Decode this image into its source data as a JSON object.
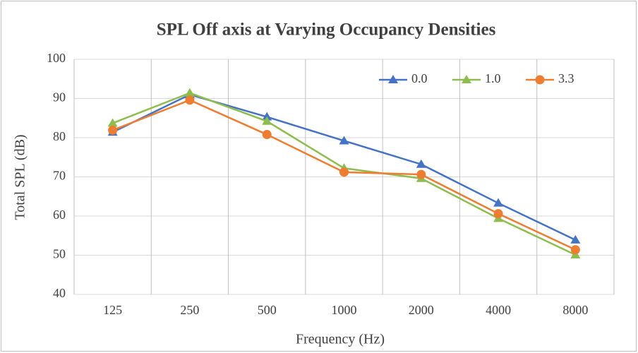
{
  "chart_data": {
    "type": "line",
    "title": "SPL Off axis at Varying Occupancy Densities",
    "xlabel": "Frequency (Hz)",
    "ylabel": "Total SPL (dB)",
    "categories": [
      "125",
      "250",
      "500",
      "1000",
      "2000",
      "4000",
      "8000"
    ],
    "series": [
      {
        "name": "0.0",
        "color": "#4472c4",
        "marker": "triangle",
        "values": [
          81.4,
          91.0,
          85.3,
          79.2,
          73.2,
          63.3,
          53.9
        ]
      },
      {
        "name": "1.0",
        "color": "#8fbc4f",
        "marker": "triangle",
        "values": [
          83.7,
          91.4,
          84.2,
          72.2,
          69.6,
          59.4,
          50.1
        ]
      },
      {
        "name": "3.3",
        "color": "#ed7d31",
        "marker": "circle",
        "values": [
          81.9,
          89.6,
          80.8,
          71.2,
          70.6,
          60.6,
          51.4
        ]
      }
    ],
    "ylim": [
      40,
      100
    ],
    "yticks": [
      40,
      50,
      60,
      70,
      80,
      90,
      100
    ],
    "grid": true,
    "legend": "top-right"
  }
}
